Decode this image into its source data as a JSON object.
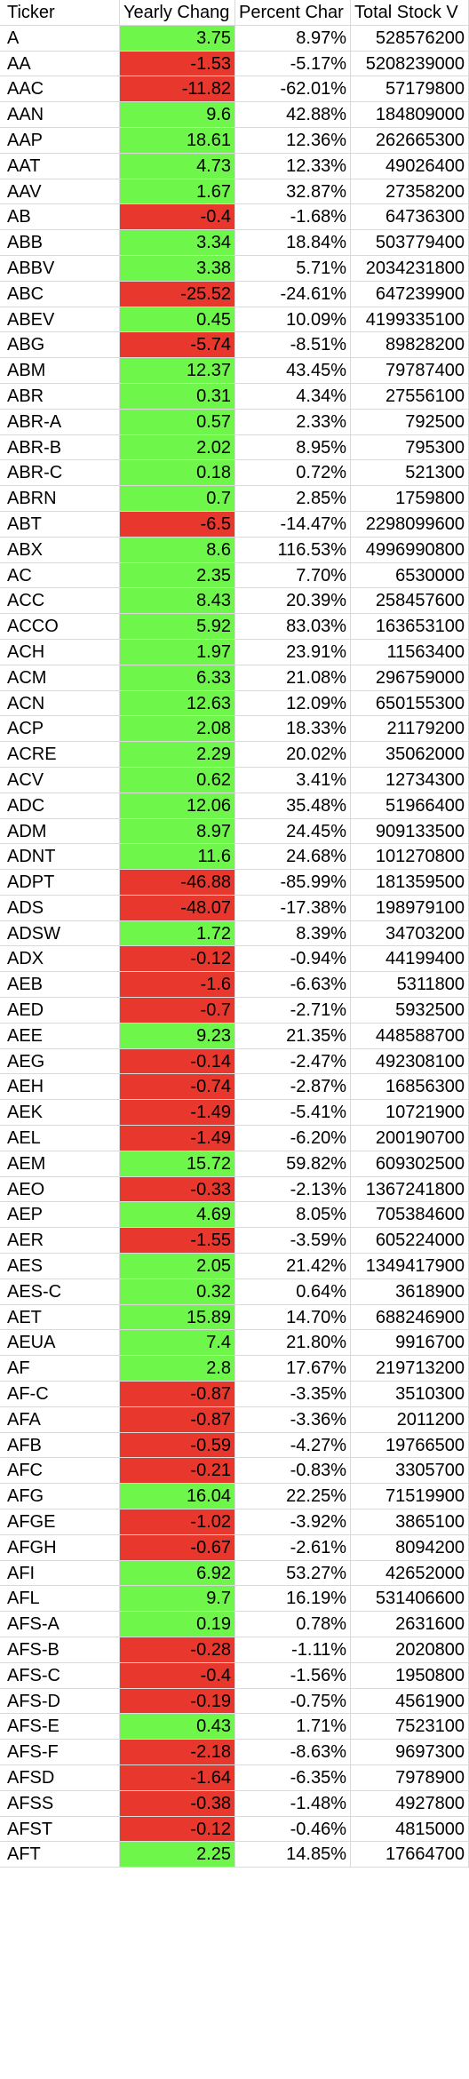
{
  "headers": [
    "Ticker",
    "Yearly Chang",
    "Percent Char",
    "Total Stock V"
  ],
  "colors": {
    "positive": "#6ef74a",
    "negative": "#e8372c",
    "grid": "#d9d9d9"
  },
  "rows": [
    [
      "A",
      "3.75",
      "8.97%",
      "528576200"
    ],
    [
      "AA",
      "-1.53",
      "-5.17%",
      "5208239000"
    ],
    [
      "AAC",
      "-11.82",
      "-62.01%",
      "57179800"
    ],
    [
      "AAN",
      "9.6",
      "42.88%",
      "184809000"
    ],
    [
      "AAP",
      "18.61",
      "12.36%",
      "262665300"
    ],
    [
      "AAT",
      "4.73",
      "12.33%",
      "49026400"
    ],
    [
      "AAV",
      "1.67",
      "32.87%",
      "27358200"
    ],
    [
      "AB",
      "-0.4",
      "-1.68%",
      "64736300"
    ],
    [
      "ABB",
      "3.34",
      "18.84%",
      "503779400"
    ],
    [
      "ABBV",
      "3.38",
      "5.71%",
      "2034231800"
    ],
    [
      "ABC",
      "-25.52",
      "-24.61%",
      "647239900"
    ],
    [
      "ABEV",
      "0.45",
      "10.09%",
      "4199335100"
    ],
    [
      "ABG",
      "-5.74",
      "-8.51%",
      "89828200"
    ],
    [
      "ABM",
      "12.37",
      "43.45%",
      "79787400"
    ],
    [
      "ABR",
      "0.31",
      "4.34%",
      "27556100"
    ],
    [
      "ABR-A",
      "0.57",
      "2.33%",
      "792500"
    ],
    [
      "ABR-B",
      "2.02",
      "8.95%",
      "795300"
    ],
    [
      "ABR-C",
      "0.18",
      "0.72%",
      "521300"
    ],
    [
      "ABRN",
      "0.7",
      "2.85%",
      "1759800"
    ],
    [
      "ABT",
      "-6.5",
      "-14.47%",
      "2298099600"
    ],
    [
      "ABX",
      "8.6",
      "116.53%",
      "4996990800"
    ],
    [
      "AC",
      "2.35",
      "7.70%",
      "6530000"
    ],
    [
      "ACC",
      "8.43",
      "20.39%",
      "258457600"
    ],
    [
      "ACCO",
      "5.92",
      "83.03%",
      "163653100"
    ],
    [
      "ACH",
      "1.97",
      "23.91%",
      "11563400"
    ],
    [
      "ACM",
      "6.33",
      "21.08%",
      "296759000"
    ],
    [
      "ACN",
      "12.63",
      "12.09%",
      "650155300"
    ],
    [
      "ACP",
      "2.08",
      "18.33%",
      "21179200"
    ],
    [
      "ACRE",
      "2.29",
      "20.02%",
      "35062000"
    ],
    [
      "ACV",
      "0.62",
      "3.41%",
      "12734300"
    ],
    [
      "ADC",
      "12.06",
      "35.48%",
      "51966400"
    ],
    [
      "ADM",
      "8.97",
      "24.45%",
      "909133500"
    ],
    [
      "ADNT",
      "11.6",
      "24.68%",
      "101270800"
    ],
    [
      "ADPT",
      "-46.88",
      "-85.99%",
      "181359500"
    ],
    [
      "ADS",
      "-48.07",
      "-17.38%",
      "198979100"
    ],
    [
      "ADSW",
      "1.72",
      "8.39%",
      "34703200"
    ],
    [
      "ADX",
      "-0.12",
      "-0.94%",
      "44199400"
    ],
    [
      "AEB",
      "-1.6",
      "-6.63%",
      "5311800"
    ],
    [
      "AED",
      "-0.7",
      "-2.71%",
      "5932500"
    ],
    [
      "AEE",
      "9.23",
      "21.35%",
      "448588700"
    ],
    [
      "AEG",
      "-0.14",
      "-2.47%",
      "492308100"
    ],
    [
      "AEH",
      "-0.74",
      "-2.87%",
      "16856300"
    ],
    [
      "AEK",
      "-1.49",
      "-5.41%",
      "10721900"
    ],
    [
      "AEL",
      "-1.49",
      "-6.20%",
      "200190700"
    ],
    [
      "AEM",
      "15.72",
      "59.82%",
      "609302500"
    ],
    [
      "AEO",
      "-0.33",
      "-2.13%",
      "1367241800"
    ],
    [
      "AEP",
      "4.69",
      "8.05%",
      "705384600"
    ],
    [
      "AER",
      "-1.55",
      "-3.59%",
      "605224000"
    ],
    [
      "AES",
      "2.05",
      "21.42%",
      "1349417900"
    ],
    [
      "AES-C",
      "0.32",
      "0.64%",
      "3618900"
    ],
    [
      "AET",
      "15.89",
      "14.70%",
      "688246900"
    ],
    [
      "AEUA",
      "7.4",
      "21.80%",
      "9916700"
    ],
    [
      "AF",
      "2.8",
      "17.67%",
      "219713200"
    ],
    [
      "AF-C",
      "-0.87",
      "-3.35%",
      "3510300"
    ],
    [
      "AFA",
      "-0.87",
      "-3.36%",
      "2011200"
    ],
    [
      "AFB",
      "-0.59",
      "-4.27%",
      "19766500"
    ],
    [
      "AFC",
      "-0.21",
      "-0.83%",
      "3305700"
    ],
    [
      "AFG",
      "16.04",
      "22.25%",
      "71519900"
    ],
    [
      "AFGE",
      "-1.02",
      "-3.92%",
      "3865100"
    ],
    [
      "AFGH",
      "-0.67",
      "-2.61%",
      "8094200"
    ],
    [
      "AFI",
      "6.92",
      "53.27%",
      "42652000"
    ],
    [
      "AFL",
      "9.7",
      "16.19%",
      "531406600"
    ],
    [
      "AFS-A",
      "0.19",
      "0.78%",
      "2631600"
    ],
    [
      "AFS-B",
      "-0.28",
      "-1.11%",
      "2020800"
    ],
    [
      "AFS-C",
      "-0.4",
      "-1.56%",
      "1950800"
    ],
    [
      "AFS-D",
      "-0.19",
      "-0.75%",
      "4561900"
    ],
    [
      "AFS-E",
      "0.43",
      "1.71%",
      "7523100"
    ],
    [
      "AFS-F",
      "-2.18",
      "-8.63%",
      "9697300"
    ],
    [
      "AFSD",
      "-1.64",
      "-6.35%",
      "7978900"
    ],
    [
      "AFSS",
      "-0.38",
      "-1.48%",
      "4927800"
    ],
    [
      "AFST",
      "-0.12",
      "-0.46%",
      "4815000"
    ],
    [
      "AFT",
      "2.25",
      "14.85%",
      "17664700"
    ]
  ]
}
